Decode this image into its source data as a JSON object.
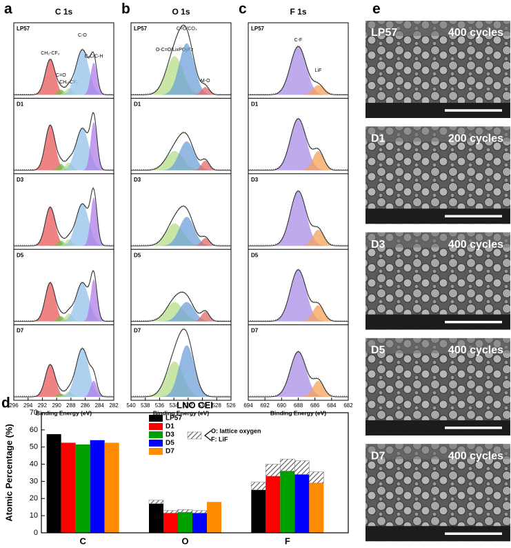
{
  "chart_data": [
    {
      "type": "spectrum",
      "panel": "a",
      "title": "C 1s",
      "xlabel": "Binding Energy (eV)",
      "xlim": [
        296,
        282
      ],
      "xticks": [
        296,
        294,
        292,
        290,
        288,
        286,
        284,
        282
      ],
      "peaks": [
        {
          "label": "CH₂-CF₂",
          "color": "#e8595a",
          "center": 290.9,
          "width": 0.7
        },
        {
          "label": "C=O",
          "color": "#6cc04a",
          "center": 289.4,
          "width": 0.45
        },
        {
          "label": "CH₂-CF₂",
          "color": "#b9e08e",
          "center": 288.3,
          "width": 0.5
        },
        {
          "label": "C-O",
          "color": "#92c2ea",
          "center": 286.4,
          "width": 0.9
        },
        {
          "label": "C-C/C-H",
          "color": "#b07de8",
          "center": 284.8,
          "width": 0.45
        }
      ],
      "samples": [
        "LP57",
        "D1",
        "D3",
        "D5",
        "D7"
      ],
      "heights": [
        [
          0.55,
          0.08,
          0.1,
          0.7,
          0.5
        ],
        [
          0.7,
          0.1,
          0.12,
          0.65,
          0.75
        ],
        [
          0.6,
          0.08,
          0.1,
          0.65,
          0.75
        ],
        [
          0.6,
          0.08,
          0.12,
          0.6,
          0.65
        ],
        [
          0.5,
          0.05,
          0.08,
          0.75,
          0.25
        ]
      ]
    },
    {
      "type": "spectrum",
      "panel": "b",
      "title": "O 1s",
      "xlabel": "Binding Energy (eV)",
      "xlim": [
        540,
        526
      ],
      "xticks": [
        540,
        538,
        536,
        534,
        532,
        530,
        528,
        526
      ],
      "peaks": [
        {
          "label": "O-C=O/LixPOyFz",
          "color": "#b5df8a",
          "center": 533.9,
          "width": 1.2
        },
        {
          "label": "C=O/CO₃",
          "color": "#6fa0d8",
          "center": 532.2,
          "width": 1.05
        },
        {
          "label": "M-O",
          "color": "#e06a6a",
          "center": 529.6,
          "width": 0.55
        }
      ],
      "samples": [
        "LP57",
        "D1",
        "D3",
        "D5",
        "D7"
      ],
      "heights": [
        [
          0.6,
          0.8,
          0.12
        ],
        [
          0.3,
          0.45,
          0.15
        ],
        [
          0.35,
          0.45,
          0.12
        ],
        [
          0.3,
          0.3,
          0.15
        ],
        [
          0.55,
          0.8,
          0
        ]
      ]
    },
    {
      "type": "spectrum",
      "panel": "c",
      "title": "F 1s",
      "xlabel": "Binding Energy (eV)",
      "xlim": [
        694,
        682
      ],
      "xticks": [
        694,
        692,
        690,
        688,
        686,
        684,
        682
      ],
      "peaks": [
        {
          "label": "C-F",
          "color": "#a98ee8",
          "center": 688.0,
          "width": 0.95
        },
        {
          "label": "LiF",
          "color": "#f5a25a",
          "center": 685.6,
          "width": 0.65
        }
      ],
      "samples": [
        "LP57",
        "D1",
        "D3",
        "D5",
        "D7"
      ],
      "heights": [
        [
          0.75,
          0.15
        ],
        [
          0.8,
          0.3
        ],
        [
          0.85,
          0.25
        ],
        [
          0.8,
          0.25
        ],
        [
          0.7,
          0.25
        ]
      ]
    },
    {
      "type": "bar",
      "panel": "d",
      "title": "LNO CEI",
      "ylabel": "Atomic Percentage (%)",
      "categories": [
        "C",
        "O",
        "F"
      ],
      "ylim": [
        0,
        70
      ],
      "yticks": [
        0,
        10,
        20,
        30,
        40,
        50,
        60,
        70
      ],
      "hatch_labels": [
        "O: lattice oxygen",
        "F: LiF"
      ],
      "series": [
        {
          "name": "LP57",
          "color": "#000000",
          "values": [
            57.5,
            17,
            25
          ],
          "hatched": [
            null,
            2,
            4.5
          ]
        },
        {
          "name": "D1",
          "color": "#ff0000",
          "values": [
            52.5,
            11.5,
            33
          ],
          "hatched": [
            null,
            1.5,
            7
          ]
        },
        {
          "name": "D3",
          "color": "#00a000",
          "values": [
            51.5,
            12,
            36
          ],
          "hatched": [
            null,
            1.5,
            7
          ]
        },
        {
          "name": "D5",
          "color": "#0000ff",
          "values": [
            54,
            11.5,
            34
          ],
          "hatched": [
            null,
            1.5,
            8
          ]
        },
        {
          "name": "D7",
          "color": "#ff8c00",
          "values": [
            52.5,
            18,
            29
          ],
          "hatched": [
            null,
            0,
            6.5
          ]
        }
      ]
    }
  ],
  "images": {
    "panel": "e",
    "items": [
      {
        "sample": "LP57",
        "cycles": "400 cycles"
      },
      {
        "sample": "D1",
        "cycles": "200 cycles"
      },
      {
        "sample": "D3",
        "cycles": "400 cycles"
      },
      {
        "sample": "D5",
        "cycles": "400 cycles"
      },
      {
        "sample": "D7",
        "cycles": "400 cycles"
      }
    ]
  }
}
